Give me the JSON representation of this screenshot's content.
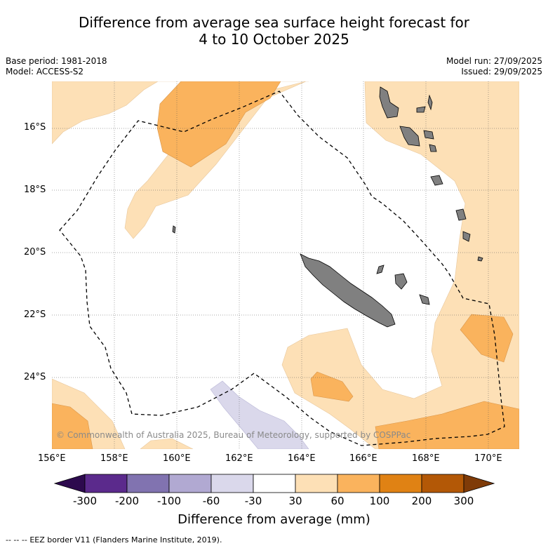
{
  "title": {
    "line1": "Difference from average sea surface height forecast for",
    "line2": "4 to 10 October 2025"
  },
  "meta": {
    "base_period": "Base period: 1981-2018",
    "model": "Model: ACCESS-S2",
    "model_run": "Model run: 27/09/2025",
    "issued": "Issued: 29/09/2025"
  },
  "axes": {
    "lat_labels": [
      "16°S",
      "18°S",
      "20°S",
      "22°S",
      "24°S"
    ],
    "lon_labels": [
      "156°E",
      "158°E",
      "160°E",
      "162°E",
      "164°E",
      "166°E",
      "168°E",
      "170°E"
    ]
  },
  "credit": "© Commonwealth of Australia 2025, Bureau of Meteorology, supported by COSPPac",
  "colorbar": {
    "ticks": [
      "-300",
      "-200",
      "-100",
      "-60",
      "-30",
      "30",
      "60",
      "100",
      "200",
      "300"
    ],
    "colors": [
      "#2d0a4e",
      "#5b2a8c",
      "#8173b0",
      "#b1a9d2",
      "#dad8eb",
      "#ffffff",
      "#fde0b6",
      "#fab35d",
      "#e08214",
      "#b35806",
      "#7f3b08"
    ],
    "title": "Difference from average (mm)"
  },
  "legend": {
    "eez_symbol": "--  --  --",
    "eez_label": "EEZ border V11 (Flanders Marine Institute, 2019)."
  }
}
